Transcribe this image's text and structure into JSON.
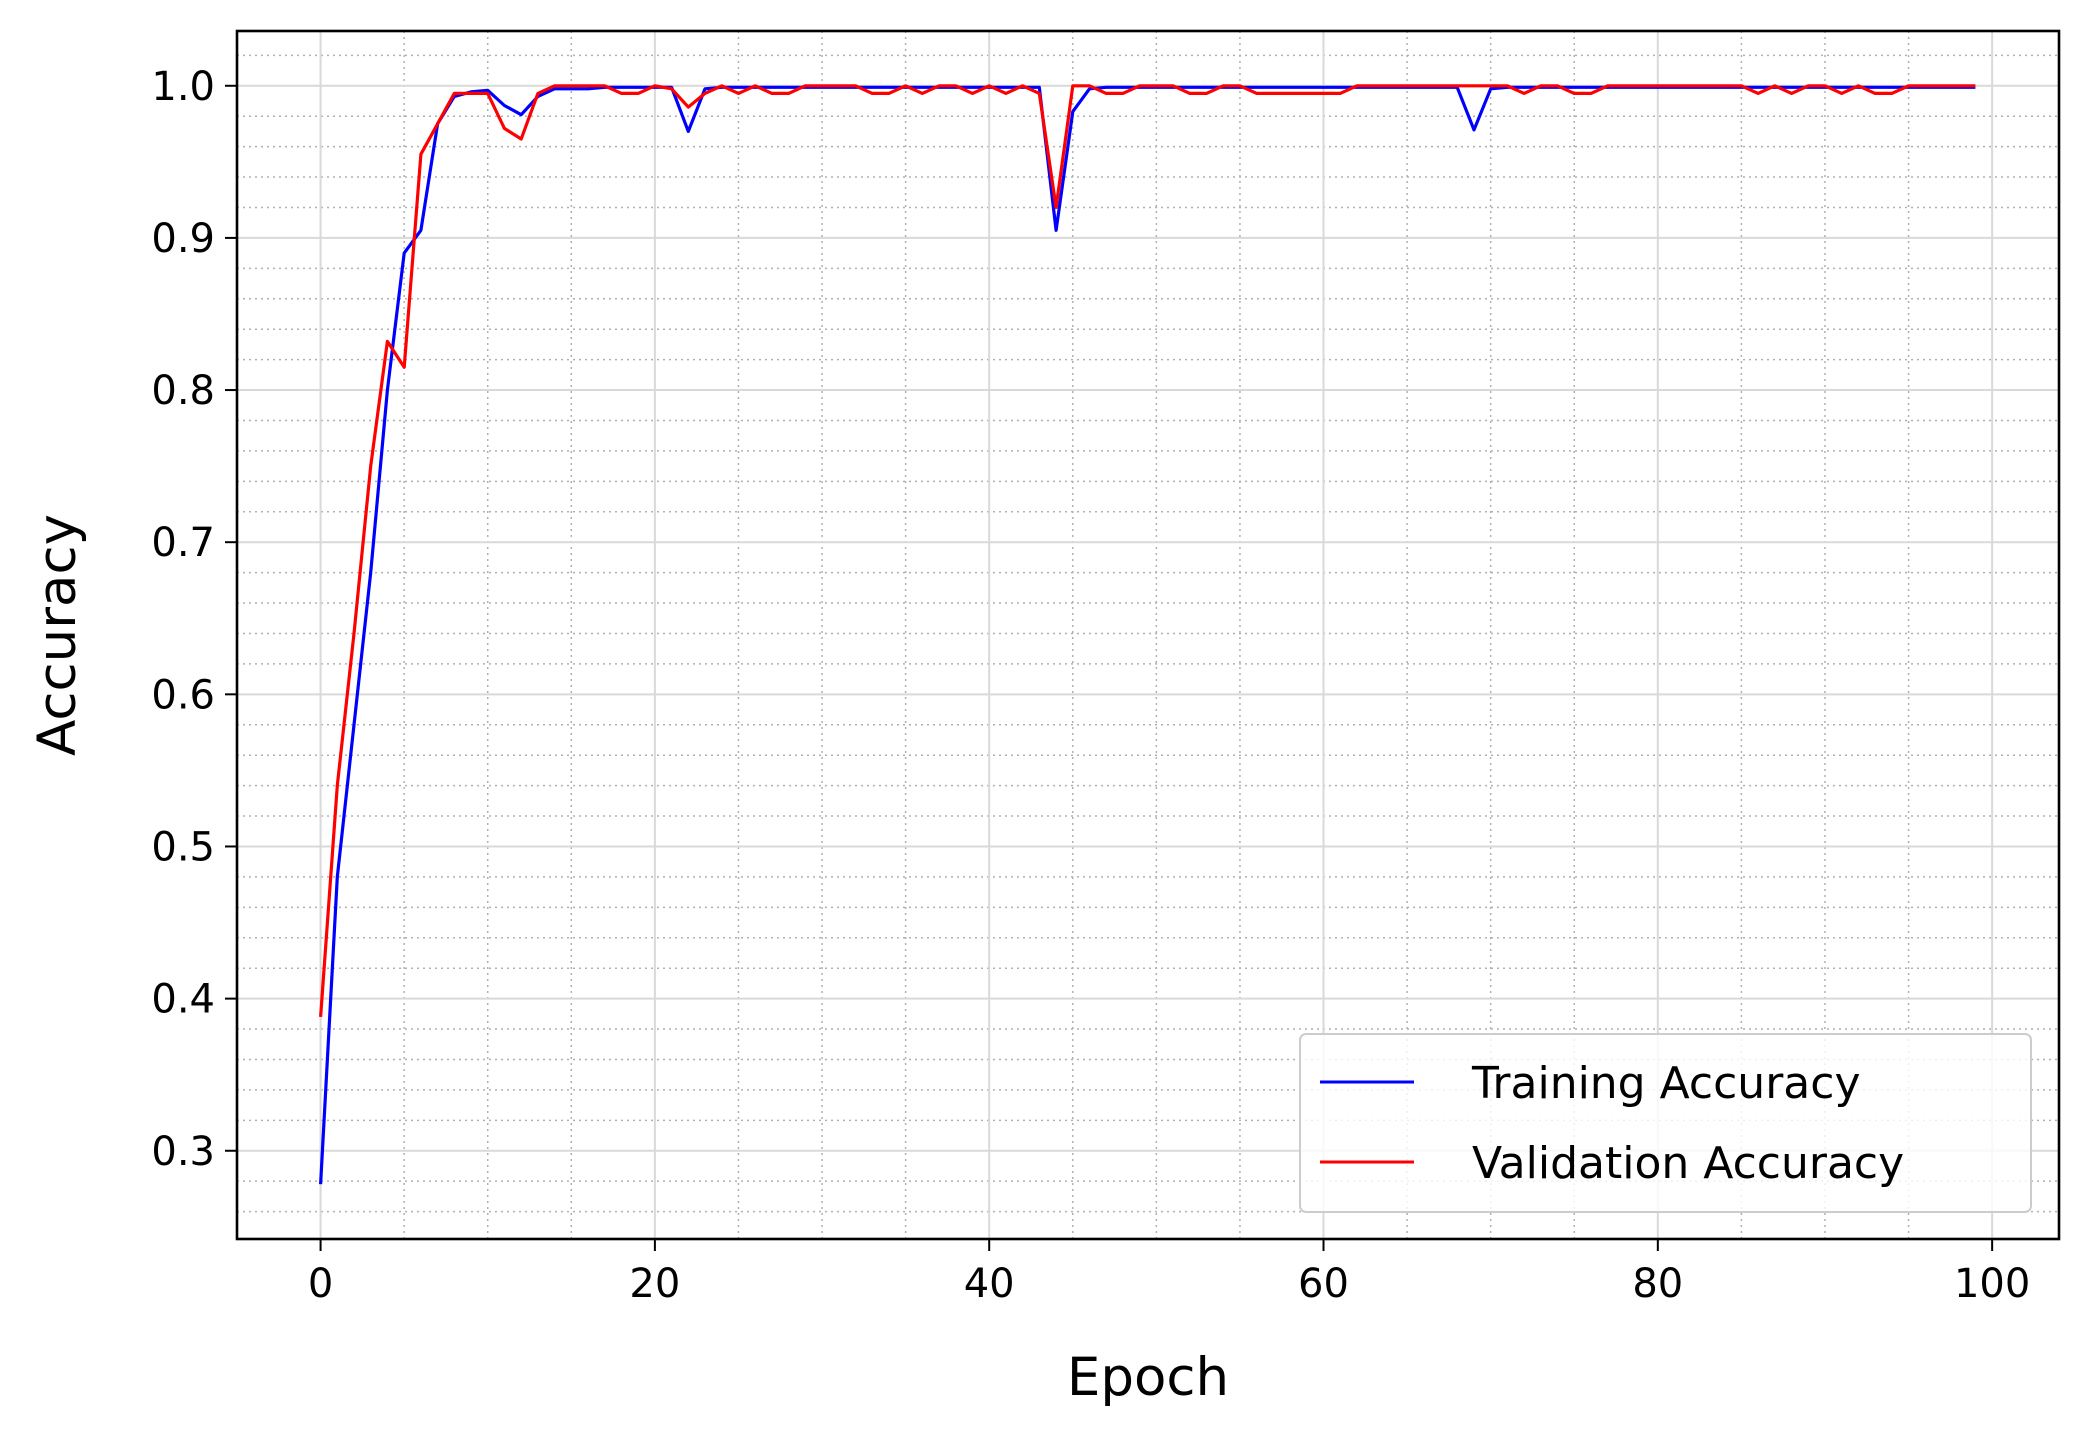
{
  "chart_data": {
    "type": "line",
    "title": "",
    "xlabel": "Epoch",
    "ylabel": "Accuracy",
    "xlim": [
      -5,
      104
    ],
    "ylim": [
      0.242,
      1.036
    ],
    "x_ticks": [
      0,
      20,
      40,
      60,
      80,
      100
    ],
    "x_tick_labels": [
      "0",
      "20",
      "40",
      "60",
      "80",
      "100"
    ],
    "y_ticks": [
      0.3,
      0.4,
      0.5,
      0.6,
      0.7,
      0.8,
      0.9,
      1.0
    ],
    "y_tick_labels": [
      "0.3",
      "0.4",
      "0.5",
      "0.6",
      "0.7",
      "0.8",
      "0.9",
      "1.0"
    ],
    "grid": {
      "major": true,
      "minor": true,
      "minor_style": "dotted"
    },
    "legend_position": "bottom-right",
    "x": [
      0,
      1,
      2,
      3,
      4,
      5,
      6,
      7,
      8,
      9,
      10,
      11,
      12,
      13,
      14,
      15,
      16,
      17,
      18,
      19,
      20,
      21,
      22,
      23,
      24,
      25,
      26,
      27,
      28,
      29,
      30,
      31,
      32,
      33,
      34,
      35,
      36,
      37,
      38,
      39,
      40,
      41,
      42,
      43,
      44,
      45,
      46,
      47,
      48,
      49,
      50,
      51,
      52,
      53,
      54,
      55,
      56,
      57,
      58,
      59,
      60,
      61,
      62,
      63,
      64,
      65,
      66,
      67,
      68,
      69,
      70,
      71,
      72,
      73,
      74,
      75,
      76,
      77,
      78,
      79,
      80,
      81,
      82,
      83,
      84,
      85,
      86,
      87,
      88,
      89,
      90,
      91,
      92,
      93,
      94,
      95,
      96,
      97,
      98,
      99
    ],
    "series": [
      {
        "name": "Training Accuracy",
        "color": "#0000ff",
        "values": [
          0.278,
          0.48,
          0.58,
          0.68,
          0.8,
          0.89,
          0.905,
          0.975,
          0.993,
          0.996,
          0.997,
          0.987,
          0.981,
          0.993,
          0.998,
          0.998,
          0.998,
          0.999,
          0.999,
          0.999,
          0.999,
          0.999,
          0.97,
          0.998,
          0.999,
          0.999,
          0.999,
          0.999,
          0.999,
          0.999,
          0.999,
          0.999,
          0.999,
          0.999,
          0.999,
          0.999,
          0.999,
          0.999,
          0.999,
          0.999,
          0.999,
          0.999,
          0.999,
          0.999,
          0.905,
          0.983,
          0.998,
          0.999,
          0.999,
          0.999,
          0.999,
          0.999,
          0.999,
          0.999,
          0.999,
          0.999,
          0.999,
          0.999,
          0.999,
          0.999,
          0.999,
          0.999,
          0.999,
          0.999,
          0.999,
          0.999,
          0.999,
          0.999,
          0.999,
          0.971,
          0.998,
          0.999,
          0.999,
          0.999,
          0.999,
          0.999,
          0.999,
          0.999,
          0.999,
          0.999,
          0.999,
          0.999,
          0.999,
          0.999,
          0.999,
          0.999,
          0.999,
          0.999,
          0.999,
          0.999,
          0.999,
          0.999,
          0.999,
          0.999,
          0.999,
          0.999,
          0.999,
          0.999,
          0.999,
          0.999
        ]
      },
      {
        "name": "Validation Accuracy",
        "color": "#ff0000",
        "values": [
          0.388,
          0.54,
          0.64,
          0.75,
          0.832,
          0.815,
          0.955,
          0.975,
          0.995,
          0.995,
          0.995,
          0.972,
          0.965,
          0.995,
          1.0,
          1.0,
          1.0,
          1.0,
          0.995,
          0.995,
          1.0,
          0.998,
          0.986,
          0.995,
          1.0,
          0.995,
          1.0,
          0.995,
          0.995,
          1.0,
          1.0,
          1.0,
          1.0,
          0.995,
          0.995,
          1.0,
          0.995,
          1.0,
          1.0,
          0.995,
          1.0,
          0.995,
          1.0,
          0.995,
          0.92,
          1.0,
          1.0,
          0.995,
          0.995,
          1.0,
          1.0,
          1.0,
          0.995,
          0.995,
          1.0,
          1.0,
          0.995,
          0.995,
          0.995,
          0.995,
          0.995,
          0.995,
          1.0,
          1.0,
          1.0,
          1.0,
          1.0,
          1.0,
          1.0,
          1.0,
          1.0,
          1.0,
          0.995,
          1.0,
          1.0,
          0.995,
          0.995,
          1.0,
          1.0,
          1.0,
          1.0,
          1.0,
          1.0,
          1.0,
          1.0,
          1.0,
          0.995,
          1.0,
          0.995,
          1.0,
          1.0,
          0.995,
          1.0,
          0.995,
          0.995,
          1.0,
          1.0,
          1.0,
          1.0,
          1.0
        ]
      }
    ]
  }
}
